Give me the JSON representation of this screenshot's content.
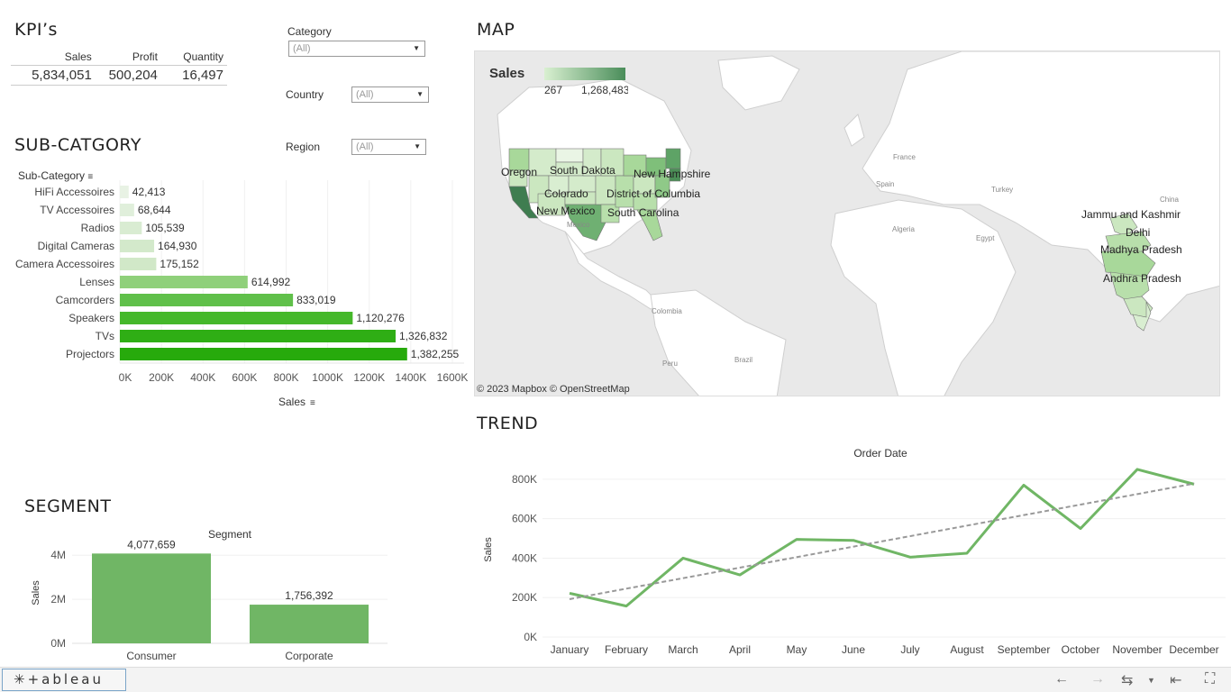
{
  "kpi": {
    "title": "KPI’s",
    "headers": [
      "Sales",
      "Profit",
      "Quantity"
    ],
    "values": [
      "5,834,051",
      "500,204",
      "16,497"
    ]
  },
  "filters": {
    "category": {
      "label": "Category",
      "value": "(All)"
    },
    "country": {
      "label": "Country",
      "value": "(All)"
    },
    "region": {
      "label": "Region",
      "value": "(All)"
    }
  },
  "subcategory": {
    "title": "SUB-CATGORY",
    "axis_header": "Sub-Category",
    "x_label": "Sales"
  },
  "segment": {
    "title": "SEGMENT",
    "header": "Segment",
    "y_label": "Sales"
  },
  "map": {
    "title": "MAP",
    "legend_title": "Sales",
    "legend_min": "267",
    "legend_max": "1,268,483",
    "attribution": "© 2023 Mapbox  © OpenStreetMap",
    "labels": [
      "Oregon",
      "South Dakota",
      "New Hampshire",
      "Colorado",
      "District of Columbia",
      "New Mexico",
      "South Carolina",
      "Jammu and Kashmir",
      "Delhi",
      "Madhya Pradesh",
      "Andhra Pradesh"
    ],
    "base_labels": [
      "France",
      "Spain",
      "Turkey",
      "Algeria",
      "Egypt",
      "Mexico",
      "Colombia",
      "Peru",
      "Brazil",
      "China"
    ]
  },
  "trend": {
    "title": "TREND",
    "header": "Order Date",
    "y_label": "Sales"
  },
  "footer": {
    "brand": "+ableau"
  },
  "chart_data": [
    {
      "type": "bar",
      "orientation": "horizontal",
      "categories": [
        "HiFi Accessoires",
        "TV Accessoires",
        "Radios",
        "Digital Cameras",
        "Camera Accessoires",
        "Lenses",
        "Camcorders",
        "Speakers",
        "TVs",
        "Projectors"
      ],
      "values": [
        42413,
        68644,
        105539,
        164930,
        175152,
        614992,
        833019,
        1120276,
        1326832,
        1382255
      ],
      "value_labels": [
        "42,413",
        "68,644",
        "105,539",
        "164,930",
        "175,152",
        "614,992",
        "833,019",
        "1,120,276",
        "1,326,832",
        "1,382,255"
      ],
      "xlabel": "Sales",
      "ylabel": "Sub-Category",
      "xlim": [
        0,
        1600000
      ],
      "x_ticks": [
        "0K",
        "200K",
        "400K",
        "600K",
        "800K",
        "1000K",
        "1200K",
        "1400K",
        "1600K"
      ],
      "colors": [
        "#e8f2e4",
        "#e0efdb",
        "#d9ecd2",
        "#d3e9cb",
        "#d1e8c8",
        "#8fd07a",
        "#60c04a",
        "#45b82a",
        "#2fae15",
        "#27aa0c"
      ]
    },
    {
      "type": "bar",
      "categories": [
        "Consumer",
        "Corporate"
      ],
      "values": [
        4077659,
        1756392
      ],
      "value_labels": [
        "4,077,659",
        "1,756,392"
      ],
      "ylabel": "Sales",
      "ylim": [
        0,
        4500000
      ],
      "y_ticks": [
        "0M",
        "2M",
        "4M"
      ],
      "color": "#70b665"
    },
    {
      "type": "line",
      "x": [
        "January",
        "February",
        "March",
        "April",
        "May",
        "June",
        "July",
        "August",
        "September",
        "October",
        "November",
        "December"
      ],
      "series": [
        {
          "values": [
            222000,
            157000,
            400000,
            315000,
            495000,
            490000,
            405000,
            425000,
            770000,
            550000,
            850000,
            775000
          ]
        }
      ],
      "trendline": [
        192000,
        245000,
        298000,
        352000,
        405000,
        458000,
        511000,
        565000,
        618000,
        671000,
        724000,
        778000
      ],
      "ylabel": "Sales",
      "ylim": [
        0,
        900000
      ],
      "y_ticks": [
        "0K",
        "200K",
        "400K",
        "600K",
        "800K"
      ],
      "color": "#70b665",
      "trend_color": "#999999"
    }
  ]
}
